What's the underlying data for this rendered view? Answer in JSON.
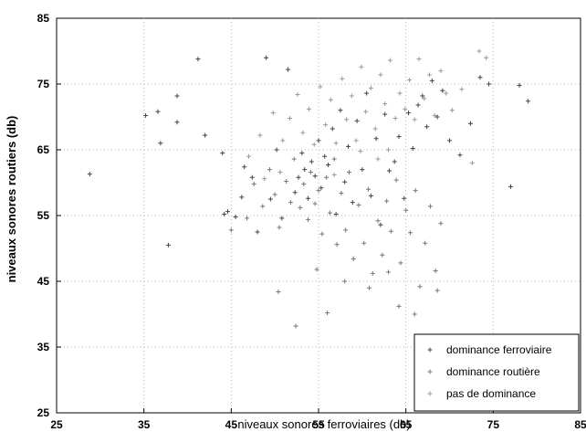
{
  "chart_data": {
    "type": "scatter",
    "title": "",
    "xlabel": "niveaux sonores ferroviaires (db)",
    "ylabel": "niveaux sonores routiers (db)",
    "xlim": [
      25,
      85
    ],
    "ylim": [
      25,
      85
    ],
    "xticks": [
      25,
      35,
      45,
      55,
      65,
      75,
      85
    ],
    "yticks": [
      25,
      35,
      45,
      55,
      65,
      75,
      85
    ],
    "xtick_labels": [
      "25",
      "35",
      "45",
      "55",
      "65",
      "75",
      "85"
    ],
    "ytick_labels": [
      "25",
      "35",
      "45",
      "55",
      "65",
      "75",
      "85"
    ],
    "grid": true,
    "legend_position": "bottom-right",
    "series": [
      {
        "name": "dominance ferroviaire",
        "color": "#444444",
        "marker": "+",
        "points": [
          [
            28.8,
            61.3
          ],
          [
            35.2,
            70.2
          ],
          [
            36.6,
            70.8
          ],
          [
            36.9,
            66.0
          ],
          [
            37.8,
            50.5
          ],
          [
            38.8,
            73.2
          ],
          [
            38.8,
            69.2
          ],
          [
            41.2,
            78.8
          ],
          [
            42.0,
            67.2
          ],
          [
            44.0,
            64.5
          ],
          [
            44.2,
            55.2
          ],
          [
            44.6,
            55.6
          ],
          [
            45.5,
            54.8
          ],
          [
            46.2,
            57.8
          ],
          [
            46.5,
            62.4
          ],
          [
            47.4,
            60.8
          ],
          [
            48.0,
            52.5
          ],
          [
            49.0,
            79.0
          ],
          [
            49.5,
            57.5
          ],
          [
            50.2,
            65.0
          ],
          [
            50.8,
            54.6
          ],
          [
            51.5,
            77.2
          ],
          [
            52.3,
            58.5
          ],
          [
            52.7,
            60.8
          ],
          [
            53.1,
            64.5
          ],
          [
            53.4,
            62.0
          ],
          [
            53.8,
            57.6
          ],
          [
            54.2,
            63.2
          ],
          [
            54.6,
            61.0
          ],
          [
            55.0,
            66.4
          ],
          [
            55.3,
            59.2
          ],
          [
            55.7,
            64.0
          ],
          [
            56.1,
            62.7
          ],
          [
            56.6,
            68.2
          ],
          [
            57.0,
            55.2
          ],
          [
            57.5,
            71.0
          ],
          [
            58.0,
            60.1
          ],
          [
            58.4,
            65.5
          ],
          [
            58.9,
            57.0
          ],
          [
            59.4,
            69.4
          ],
          [
            60.0,
            62.0
          ],
          [
            60.5,
            73.6
          ],
          [
            61.0,
            58.0
          ],
          [
            61.6,
            66.7
          ],
          [
            62.1,
            53.6
          ],
          [
            62.6,
            70.4
          ],
          [
            63.1,
            61.8
          ],
          [
            63.7,
            63.2
          ],
          [
            64.2,
            67.0
          ],
          [
            64.8,
            57.6
          ],
          [
            65.3,
            70.6
          ],
          [
            65.8,
            65.2
          ],
          [
            66.4,
            71.8
          ],
          [
            66.9,
            73.2
          ],
          [
            67.4,
            68.5
          ],
          [
            68.0,
            75.5
          ],
          [
            68.6,
            70.0
          ],
          [
            69.2,
            74.0
          ],
          [
            70.0,
            66.4
          ],
          [
            71.2,
            64.2
          ],
          [
            72.4,
            69.0
          ],
          [
            73.5,
            76.0
          ],
          [
            74.5,
            75.0
          ],
          [
            77.0,
            59.4
          ],
          [
            78.0,
            74.8
          ],
          [
            79.0,
            72.4
          ]
        ]
      },
      {
        "name": "dominance routière",
        "color": "#777777",
        "marker": "+",
        "points": [
          [
            45.0,
            52.8
          ],
          [
            46.8,
            54.6
          ],
          [
            47.6,
            59.8
          ],
          [
            48.6,
            56.4
          ],
          [
            49.4,
            62.0
          ],
          [
            50.0,
            58.2
          ],
          [
            50.5,
            53.2
          ],
          [
            51.3,
            60.2
          ],
          [
            51.8,
            57.0
          ],
          [
            52.2,
            63.6
          ],
          [
            52.9,
            56.2
          ],
          [
            53.3,
            59.8
          ],
          [
            53.8,
            54.4
          ],
          [
            54.1,
            61.6
          ],
          [
            54.6,
            56.8
          ],
          [
            55.0,
            58.8
          ],
          [
            55.4,
            52.2
          ],
          [
            55.9,
            60.8
          ],
          [
            56.3,
            55.4
          ],
          [
            56.8,
            63.6
          ],
          [
            57.1,
            50.6
          ],
          [
            57.6,
            58.4
          ],
          [
            58.1,
            52.8
          ],
          [
            58.5,
            61.6
          ],
          [
            59.0,
            48.4
          ],
          [
            59.6,
            56.6
          ],
          [
            60.2,
            50.8
          ],
          [
            60.7,
            59.0
          ],
          [
            61.2,
            46.2
          ],
          [
            61.8,
            54.2
          ],
          [
            62.3,
            49.0
          ],
          [
            62.8,
            57.2
          ],
          [
            63.3,
            52.6
          ],
          [
            63.9,
            60.4
          ],
          [
            64.4,
            47.8
          ],
          [
            65.0,
            55.8
          ],
          [
            65.5,
            52.4
          ],
          [
            66.1,
            58.8
          ],
          [
            66.6,
            44.2
          ],
          [
            67.2,
            50.8
          ],
          [
            67.8,
            56.4
          ],
          [
            68.4,
            46.6
          ],
          [
            69.0,
            53.8
          ],
          [
            58.0,
            45.0
          ],
          [
            56.0,
            40.2
          ],
          [
            52.4,
            38.2
          ],
          [
            50.4,
            43.4
          ],
          [
            54.8,
            46.8
          ],
          [
            60.8,
            44.0
          ],
          [
            63.0,
            46.4
          ],
          [
            64.2,
            41.2
          ],
          [
            66.0,
            40.0
          ],
          [
            68.6,
            43.6
          ]
        ]
      },
      {
        "name": "pas de dominance",
        "color": "#999999",
        "marker": "+",
        "points": [
          [
            47.0,
            64.0
          ],
          [
            48.3,
            67.2
          ],
          [
            49.8,
            70.6
          ],
          [
            50.9,
            66.4
          ],
          [
            51.7,
            69.8
          ],
          [
            52.6,
            73.4
          ],
          [
            53.2,
            67.6
          ],
          [
            53.9,
            71.2
          ],
          [
            54.5,
            65.8
          ],
          [
            55.2,
            74.6
          ],
          [
            55.8,
            68.8
          ],
          [
            56.4,
            72.6
          ],
          [
            57.0,
            66.0
          ],
          [
            57.7,
            75.8
          ],
          [
            58.2,
            69.6
          ],
          [
            58.8,
            73.2
          ],
          [
            59.3,
            66.4
          ],
          [
            59.9,
            77.6
          ],
          [
            60.4,
            70.8
          ],
          [
            61.0,
            74.4
          ],
          [
            61.5,
            68.2
          ],
          [
            62.1,
            76.4
          ],
          [
            62.6,
            72.0
          ],
          [
            63.2,
            78.6
          ],
          [
            63.8,
            69.8
          ],
          [
            64.3,
            73.6
          ],
          [
            64.9,
            71.2
          ],
          [
            65.4,
            75.6
          ],
          [
            66.0,
            69.6
          ],
          [
            66.5,
            78.8
          ],
          [
            67.1,
            72.8
          ],
          [
            67.7,
            76.4
          ],
          [
            68.3,
            70.2
          ],
          [
            69.0,
            77.0
          ],
          [
            69.6,
            73.6
          ],
          [
            70.3,
            71.0
          ],
          [
            71.4,
            74.2
          ],
          [
            72.6,
            63.0
          ],
          [
            73.4,
            80.0
          ],
          [
            74.2,
            79.0
          ],
          [
            48.8,
            60.6
          ],
          [
            50.6,
            61.6
          ],
          [
            56.8,
            61.2
          ],
          [
            59.8,
            64.8
          ],
          [
            61.8,
            63.6
          ],
          [
            63.0,
            65.0
          ]
        ]
      }
    ]
  }
}
